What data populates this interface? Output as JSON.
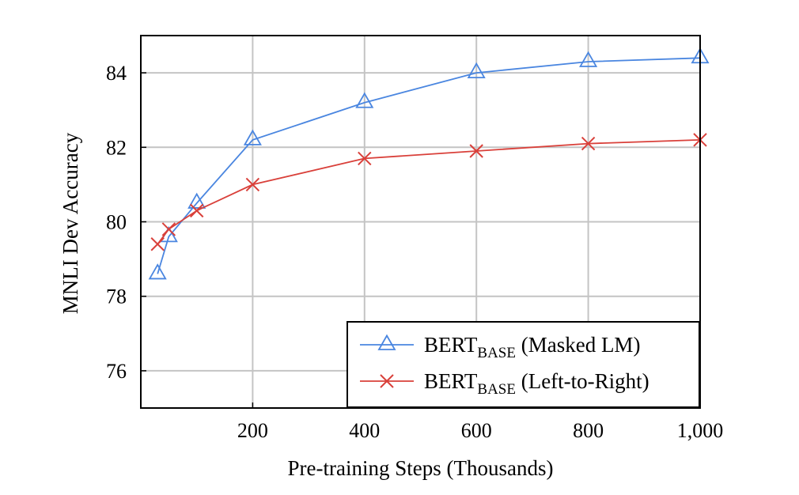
{
  "chart_data": {
    "type": "line",
    "xlabel": "Pre-training Steps (Thousands)",
    "ylabel": "MNLI Dev Accuracy",
    "xlim": [
      0,
      1000
    ],
    "ylim": [
      75,
      85
    ],
    "xticks": [
      200,
      400,
      600,
      800,
      1000
    ],
    "xtick_labels": [
      "200",
      "400",
      "600",
      "800",
      "1,000"
    ],
    "yticks": [
      76,
      78,
      80,
      82,
      84
    ],
    "ytick_labels": [
      "76",
      "78",
      "80",
      "82",
      "84"
    ],
    "grid": true,
    "legend_position": "bottom-right",
    "series": [
      {
        "name": "BERTBASE (Masked LM)",
        "name_main": "BERT",
        "name_sub": "BASE",
        "name_rest": " (Masked LM)",
        "color": "#4a86e0",
        "marker": "triangle",
        "x": [
          30,
          50,
          100,
          200,
          400,
          600,
          800,
          1000
        ],
        "y": [
          78.6,
          79.6,
          80.5,
          82.2,
          83.2,
          84.0,
          84.3,
          84.4
        ]
      },
      {
        "name": "BERTBASE (Left-to-Right)",
        "name_main": "BERT",
        "name_sub": "BASE",
        "name_rest": " (Left-to-Right)",
        "color": "#d9403a",
        "marker": "x",
        "x": [
          30,
          50,
          100,
          200,
          400,
          600,
          800,
          1000
        ],
        "y": [
          79.4,
          79.8,
          80.3,
          81.0,
          81.7,
          81.9,
          82.1,
          82.2
        ]
      }
    ]
  }
}
